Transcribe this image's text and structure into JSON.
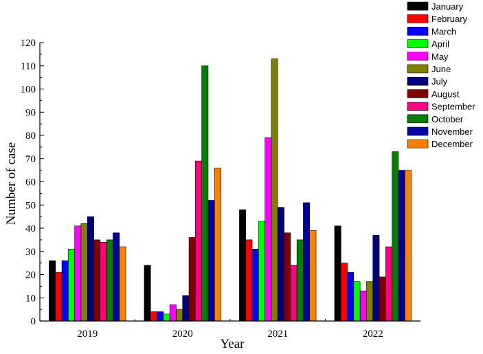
{
  "chart_data": {
    "type": "bar",
    "categories": [
      "2019",
      "2020",
      "2021",
      "2022"
    ],
    "xlabel": "Year",
    "ylabel": "Number of case",
    "ylim": [
      0,
      120
    ],
    "yticks": [
      0,
      10,
      20,
      30,
      40,
      50,
      60,
      70,
      80,
      90,
      100,
      110,
      120
    ],
    "grid": false,
    "legend_position": "top-right",
    "series": [
      {
        "name": "January",
        "color": "#000000",
        "values": [
          26,
          24,
          48,
          41
        ]
      },
      {
        "name": "February",
        "color": "#ff0000",
        "values": [
          21,
          4,
          35,
          25
        ]
      },
      {
        "name": "March",
        "color": "#0000ff",
        "values": [
          26,
          4,
          31,
          21
        ]
      },
      {
        "name": "April",
        "color": "#00ff00",
        "values": [
          31,
          3,
          43,
          17
        ]
      },
      {
        "name": "May",
        "color": "#ff00ff",
        "values": [
          41,
          7,
          79,
          13
        ]
      },
      {
        "name": "June",
        "color": "#808000",
        "values": [
          42,
          5,
          113,
          17
        ]
      },
      {
        "name": "July",
        "color": "#000080",
        "values": [
          45,
          11,
          49,
          37
        ]
      },
      {
        "name": "August",
        "color": "#800000",
        "values": [
          35,
          36,
          38,
          19
        ]
      },
      {
        "name": "September",
        "color": "#ff0080",
        "values": [
          34,
          69,
          24,
          32
        ]
      },
      {
        "name": "October",
        "color": "#008000",
        "values": [
          35,
          110,
          35,
          73
        ]
      },
      {
        "name": "November",
        "color": "#0000a0",
        "values": [
          38,
          52,
          51,
          65
        ]
      },
      {
        "name": "December",
        "color": "#ff8000",
        "values": [
          32,
          66,
          39,
          65
        ]
      }
    ]
  }
}
